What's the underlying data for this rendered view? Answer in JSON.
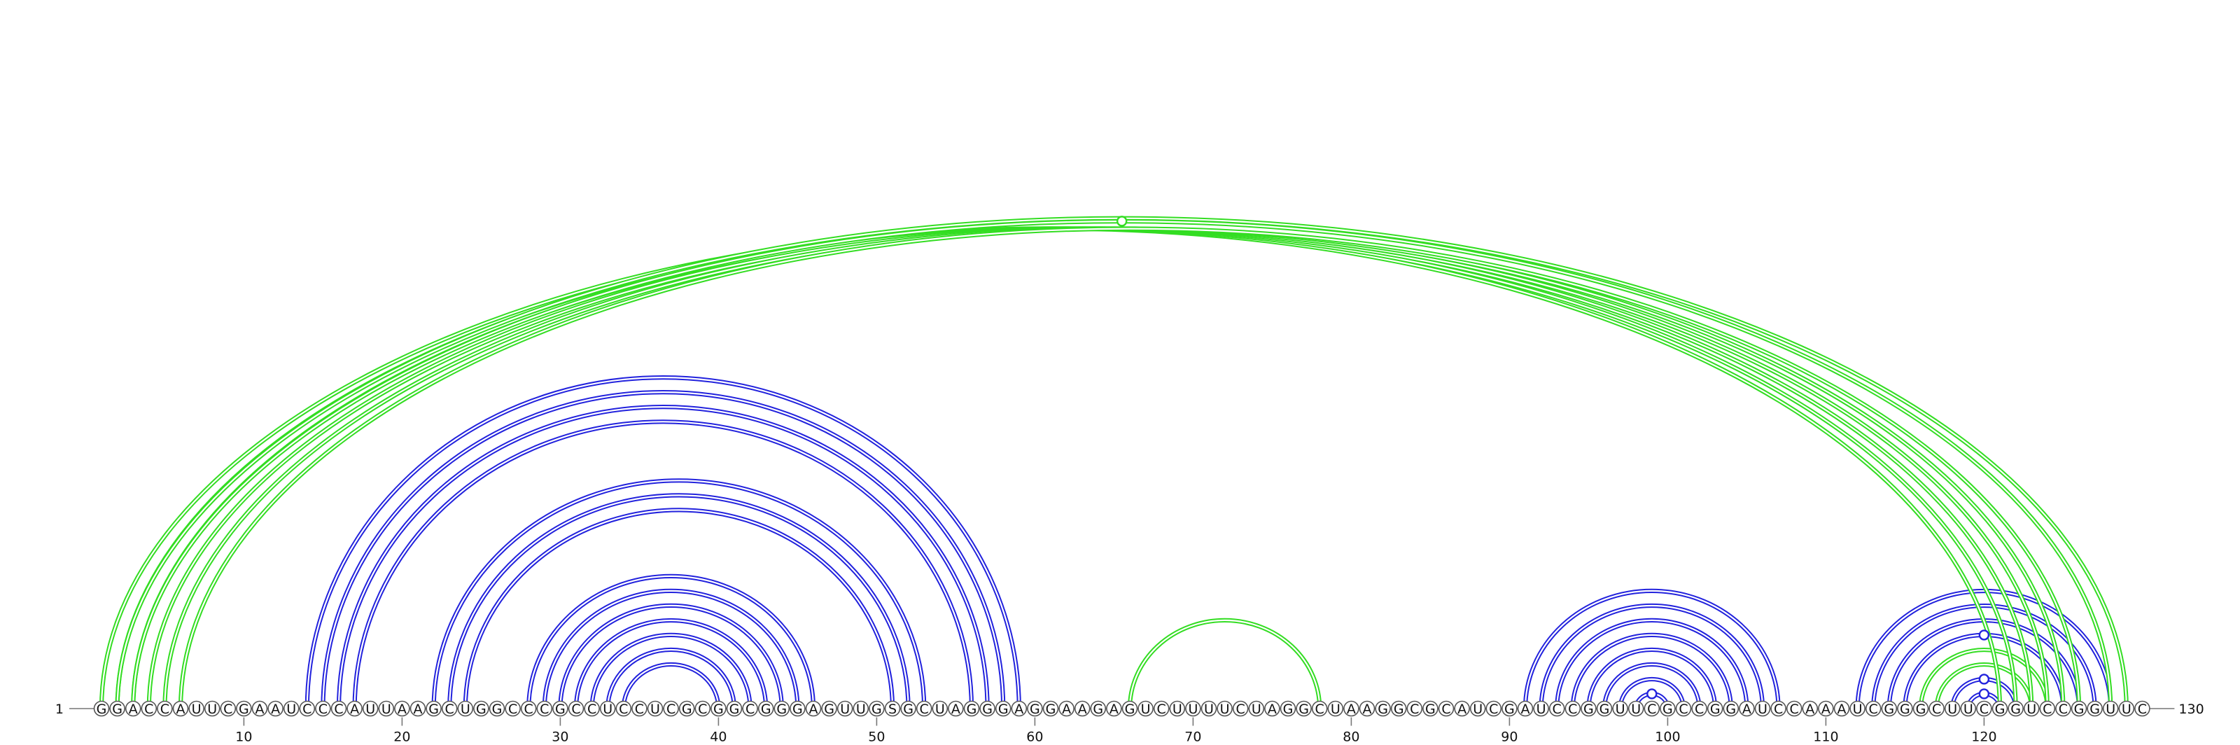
{
  "chart_data": {
    "type": "arc-diagram",
    "sequence": "GGACCAUUCGAAUCCCAUUAAGCUGGCCCGCCUCCUCGCGGCGGGAGUUGSGCUAGGGAGGAAGAGUCUUUUCUAGGCUAAGGCGCAUCGAUCCGGUUCGCCGGAUCCAAAUCGGGCUUCGGUCCGGUUC",
    "start_label": "1",
    "end_label": "130",
    "ticks": [
      10,
      20,
      30,
      40,
      50,
      60,
      70,
      80,
      90,
      100,
      110,
      120
    ],
    "colors": {
      "blue": "#2222dd",
      "green": "#33dd22"
    },
    "arc_groups": [
      {
        "color": "blue",
        "pairs": [
          [
            14,
            59
          ],
          [
            15,
            58
          ],
          [
            16,
            57
          ],
          [
            17,
            56
          ]
        ]
      },
      {
        "color": "blue",
        "pairs": [
          [
            22,
            53
          ],
          [
            23,
            52
          ],
          [
            24,
            51
          ]
        ]
      },
      {
        "color": "blue",
        "pairs": [
          [
            28,
            46
          ],
          [
            29,
            45
          ],
          [
            30,
            44
          ],
          [
            31,
            43
          ],
          [
            32,
            42
          ],
          [
            33,
            41
          ],
          [
            34,
            40
          ]
        ]
      },
      {
        "color": "green",
        "pairs": [
          [
            66,
            78
          ]
        ]
      },
      {
        "color": "blue",
        "pairs": [
          [
            91,
            107
          ],
          [
            92,
            106
          ],
          [
            93,
            105
          ],
          [
            94,
            104
          ],
          [
            95,
            103
          ],
          [
            96,
            102
          ],
          [
            97,
            101
          ],
          [
            98,
            100
          ]
        ]
      },
      {
        "color": "blue",
        "pairs": [
          [
            112,
            128
          ],
          [
            113,
            127
          ],
          [
            114,
            126
          ],
          [
            115,
            125
          ]
        ]
      },
      {
        "color": "green",
        "pairs": [
          [
            116,
            124
          ],
          [
            117,
            123
          ]
        ]
      },
      {
        "color": "blue",
        "pairs": [
          [
            118,
            122
          ],
          [
            119,
            121
          ]
        ]
      },
      {
        "color": "green",
        "pairs": [
          [
            1,
            121
          ],
          [
            2,
            122
          ],
          [
            3,
            123
          ],
          [
            4,
            124
          ],
          [
            5,
            125
          ],
          [
            6,
            126
          ]
        ]
      },
      {
        "color": "green",
        "pairs": [
          [
            2,
            129
          ],
          [
            3,
            128
          ]
        ]
      }
    ],
    "markers": [
      {
        "color": "green",
        "between": [
          3,
          128
        ]
      },
      {
        "color": "blue",
        "between": [
          98,
          100
        ]
      },
      {
        "color": "blue",
        "between": [
          115,
          125
        ]
      },
      {
        "color": "blue",
        "between": [
          118,
          122
        ]
      },
      {
        "color": "blue",
        "between": [
          119,
          121
        ]
      }
    ]
  }
}
